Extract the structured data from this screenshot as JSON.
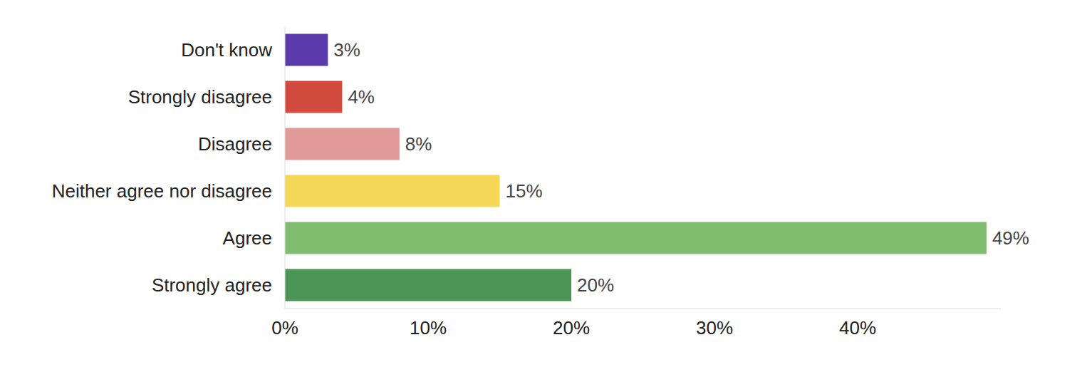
{
  "chart_data": {
    "type": "bar",
    "orientation": "horizontal",
    "categories": [
      "Don't know",
      "Strongly disagree",
      "Disagree",
      "Neither agree nor disagree",
      "Agree",
      "Strongly agree"
    ],
    "values": [
      3,
      4,
      8,
      15,
      49,
      20
    ],
    "value_labels": [
      "3%",
      "4%",
      "8%",
      "15%",
      "49%",
      "20%"
    ],
    "colors": [
      "#5b3aab",
      "#d24a3e",
      "#e29a98",
      "#f5d857",
      "#80bd6e",
      "#4b9656"
    ],
    "xlim": [
      0,
      50
    ],
    "xticks": [
      {
        "value": 0,
        "label": "0%"
      },
      {
        "value": 10,
        "label": "10%"
      },
      {
        "value": 20,
        "label": "20%"
      },
      {
        "value": 30,
        "label": "30%"
      },
      {
        "value": 40,
        "label": "40%"
      }
    ],
    "grid": false,
    "data_labels": true
  }
}
